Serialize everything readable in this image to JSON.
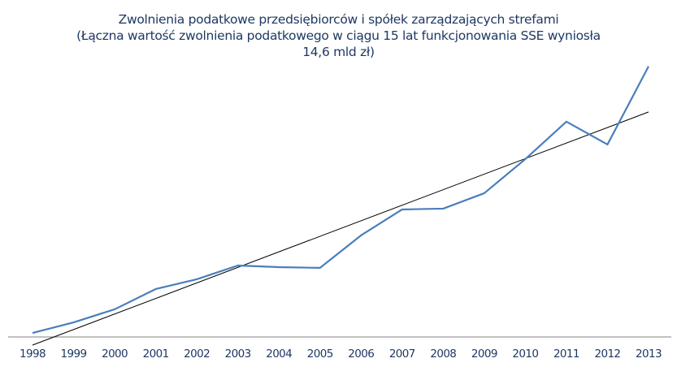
{
  "chart_data": {
    "type": "line",
    "title_lines": [
      "Zwolnienia podatkowe przedsiębiorców i spółek zarządzających strefami",
      "(Łączna wartość zwolnienia podatkowego w ciągu 15 lat funkcjonowania SSE wyniosła",
      "14,6 mld zł)"
    ],
    "xlabel": "",
    "ylabel": "",
    "categories": [
      "1998",
      "1999",
      "2000",
      "2001",
      "2002",
      "2003",
      "2004",
      "2005",
      "2006",
      "2007",
      "2008",
      "2009",
      "2010",
      "2011",
      "2012",
      "2013"
    ],
    "series": [
      {
        "name": "Zwolnienia podatkowe (szac. mln zł)",
        "color": "#4a7ebb",
        "values": [
          34,
          124,
          235,
          407,
          490,
          607,
          593,
          587,
          863,
          1083,
          1090,
          1221,
          1511,
          1829,
          1635,
          2298
        ]
      }
    ],
    "trendline": {
      "type": "linear",
      "color": "#000000",
      "start": -69,
      "end": 1911
    },
    "ylim": [
      0,
      2400
    ],
    "y_axis_visible": false,
    "grid": false,
    "legend": "none"
  }
}
